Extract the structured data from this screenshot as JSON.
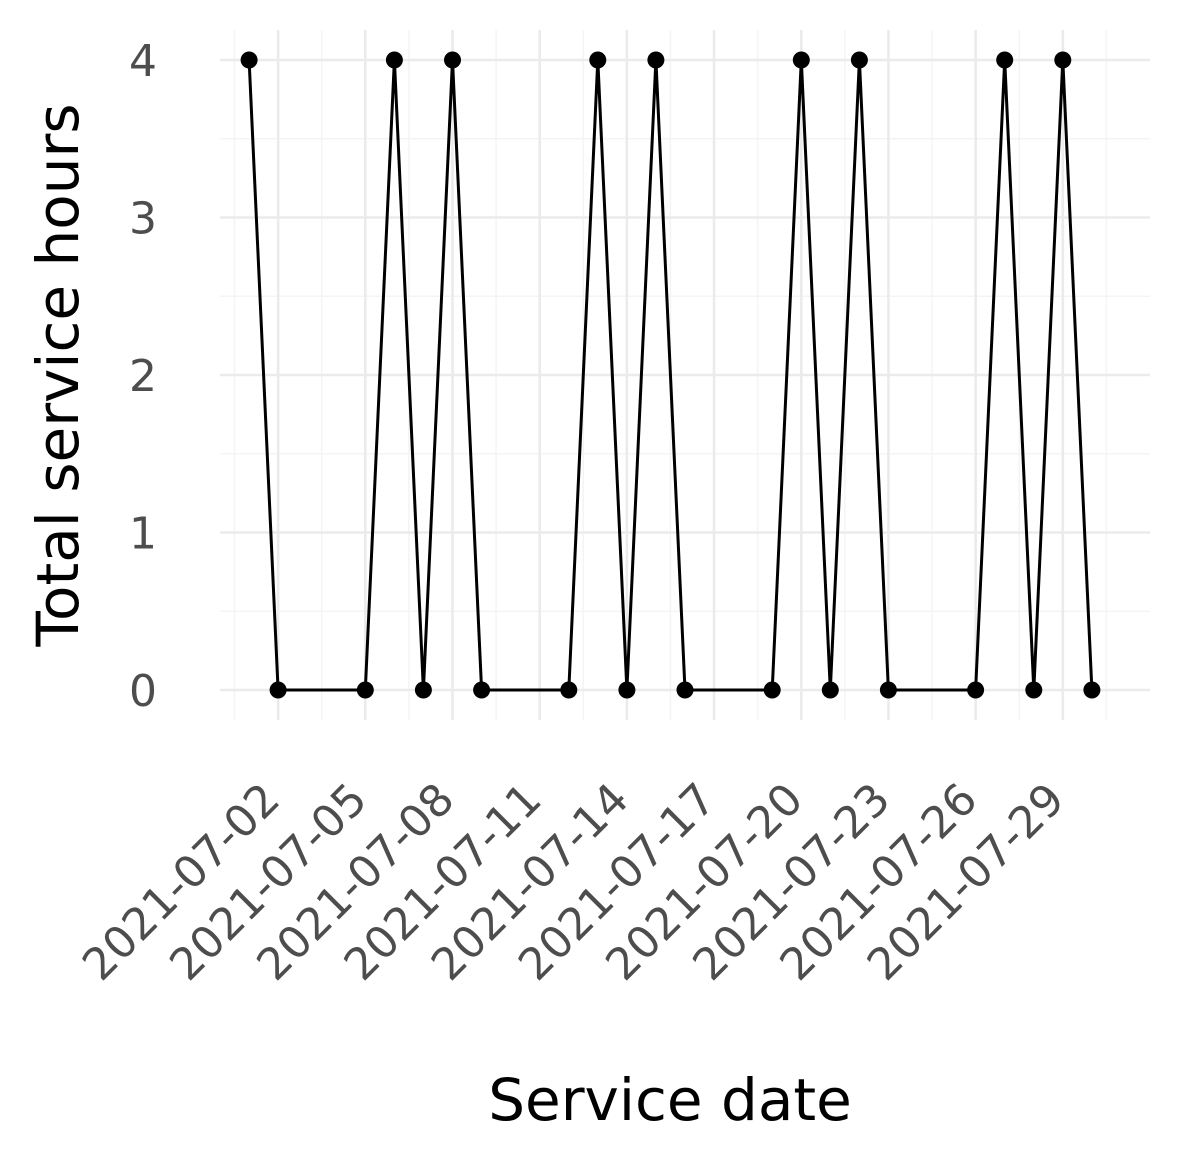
{
  "chart_data": {
    "type": "line",
    "title": "",
    "xlabel": "Service date",
    "ylabel": "Total service hours",
    "x_tick_labels": [
      "2021-07-02",
      "2021-07-05",
      "2021-07-08",
      "2021-07-11",
      "2021-07-14",
      "2021-07-17",
      "2021-07-20",
      "2021-07-23",
      "2021-07-26",
      "2021-07-29"
    ],
    "y_tick_labels": [
      "0",
      "1",
      "2",
      "3",
      "4"
    ],
    "xlim": [
      "2021-06-30",
      "2021-08-01"
    ],
    "ylim": [
      0,
      4
    ],
    "grid": true,
    "legend": "none",
    "series": [
      {
        "color": "#000000",
        "points": [
          {
            "x": "2021-07-01",
            "y": 4
          },
          {
            "x": "2021-07-02",
            "y": 0
          },
          {
            "x": "2021-07-05",
            "y": 0
          },
          {
            "x": "2021-07-06",
            "y": 4
          },
          {
            "x": "2021-07-07",
            "y": 0
          },
          {
            "x": "2021-07-08",
            "y": 4
          },
          {
            "x": "2021-07-09",
            "y": 0
          },
          {
            "x": "2021-07-12",
            "y": 0
          },
          {
            "x": "2021-07-13",
            "y": 4
          },
          {
            "x": "2021-07-14",
            "y": 0
          },
          {
            "x": "2021-07-15",
            "y": 4
          },
          {
            "x": "2021-07-16",
            "y": 0
          },
          {
            "x": "2021-07-19",
            "y": 0
          },
          {
            "x": "2021-07-20",
            "y": 4
          },
          {
            "x": "2021-07-21",
            "y": 0
          },
          {
            "x": "2021-07-22",
            "y": 4
          },
          {
            "x": "2021-07-23",
            "y": 0
          },
          {
            "x": "2021-07-26",
            "y": 0
          },
          {
            "x": "2021-07-27",
            "y": 4
          },
          {
            "x": "2021-07-28",
            "y": 0
          },
          {
            "x": "2021-07-29",
            "y": 4
          },
          {
            "x": "2021-07-30",
            "y": 0
          }
        ]
      }
    ]
  }
}
